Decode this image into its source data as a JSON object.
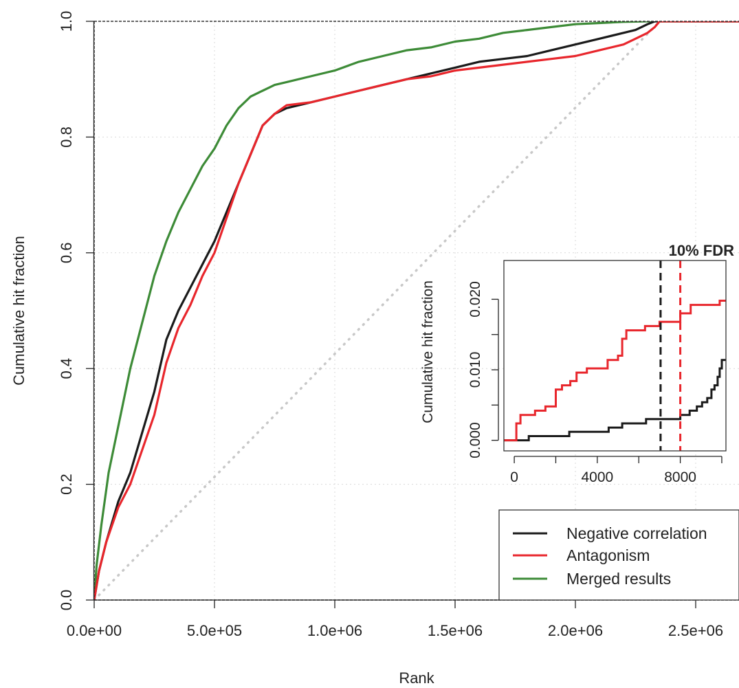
{
  "chart_data": [
    {
      "type": "line",
      "title": "",
      "xlabel": "Rank",
      "ylabel": "Cumulative hit fraction",
      "xlim": [
        0,
        2680000
      ],
      "ylim": [
        0,
        1
      ],
      "x_ticks": [
        0,
        500000,
        1000000,
        1500000,
        2000000,
        2500000
      ],
      "x_tick_labels": [
        "0.0e+00",
        "5.0e+05",
        "1.0e+06",
        "1.5e+06",
        "2.0e+06",
        "2.5e+06"
      ],
      "y_ticks": [
        0,
        0.2,
        0.4,
        0.6,
        0.8,
        1
      ],
      "y_tick_labels": [
        "0.0",
        "0.2",
        "0.4",
        "0.6",
        "0.8",
        "1.0"
      ],
      "grid": true,
      "legend_position": "bottom-right",
      "series": [
        {
          "name": "Negative correlation",
          "color": "#1a1a1a",
          "x": [
            0,
            20000,
            50000,
            100000,
            150000,
            200000,
            250000,
            300000,
            350000,
            400000,
            450000,
            500000,
            550000,
            600000,
            650000,
            700000,
            750000,
            800000,
            900000,
            1000000,
            1100000,
            1200000,
            1300000,
            1400000,
            1500000,
            1600000,
            1700000,
            1800000,
            1900000,
            2000000,
            2100000,
            2200000,
            2250000,
            2300000,
            2330000,
            2350000,
            2680000
          ],
          "y": [
            0,
            0.05,
            0.1,
            0.17,
            0.22,
            0.29,
            0.36,
            0.45,
            0.5,
            0.54,
            0.58,
            0.62,
            0.67,
            0.72,
            0.77,
            0.82,
            0.84,
            0.85,
            0.86,
            0.87,
            0.88,
            0.89,
            0.9,
            0.91,
            0.92,
            0.93,
            0.935,
            0.94,
            0.95,
            0.96,
            0.97,
            0.98,
            0.985,
            0.995,
            1.0,
            1.0,
            1.0
          ]
        },
        {
          "name": "Antagonism",
          "color": "#e8262c",
          "x": [
            0,
            20000,
            50000,
            100000,
            150000,
            200000,
            250000,
            300000,
            350000,
            400000,
            450000,
            500000,
            550000,
            600000,
            650000,
            700000,
            750000,
            800000,
            900000,
            1000000,
            1100000,
            1200000,
            1300000,
            1400000,
            1500000,
            1600000,
            1700000,
            1800000,
            1900000,
            2000000,
            2100000,
            2200000,
            2250000,
            2300000,
            2330000,
            2350000,
            2680000
          ],
          "y": [
            0,
            0.05,
            0.1,
            0.16,
            0.2,
            0.26,
            0.32,
            0.41,
            0.47,
            0.51,
            0.56,
            0.6,
            0.66,
            0.72,
            0.77,
            0.82,
            0.84,
            0.855,
            0.86,
            0.87,
            0.88,
            0.89,
            0.9,
            0.905,
            0.915,
            0.92,
            0.925,
            0.93,
            0.935,
            0.94,
            0.95,
            0.96,
            0.97,
            0.98,
            0.99,
            1.0,
            1.0
          ]
        },
        {
          "name": "Merged results",
          "color": "#3d8b37",
          "x": [
            0,
            10000,
            30000,
            60000,
            100000,
            150000,
            200000,
            250000,
            300000,
            350000,
            400000,
            450000,
            500000,
            550000,
            600000,
            650000,
            700000,
            750000,
            800000,
            900000,
            1000000,
            1100000,
            1200000,
            1300000,
            1400000,
            1500000,
            1600000,
            1700000,
            1800000,
            1900000,
            2000000,
            2100000,
            2200000,
            2300000,
            2350000,
            2680000
          ],
          "y": [
            0,
            0.06,
            0.13,
            0.22,
            0.3,
            0.4,
            0.48,
            0.56,
            0.62,
            0.67,
            0.71,
            0.75,
            0.78,
            0.82,
            0.85,
            0.87,
            0.88,
            0.89,
            0.895,
            0.905,
            0.915,
            0.93,
            0.94,
            0.95,
            0.955,
            0.965,
            0.97,
            0.98,
            0.985,
            0.99,
            0.995,
            0.997,
            0.999,
            1.0,
            1.0,
            1.0
          ]
        },
        {
          "name": "",
          "color": "#c8c8c8",
          "dash": "dotted",
          "x": [
            0,
            2680000
          ],
          "y": [
            0,
            1.14
          ]
        }
      ]
    },
    {
      "type": "line",
      "title": "",
      "xlabel": "",
      "ylabel": "Cumulative hit fraction",
      "xlim": [
        -500,
        10200
      ],
      "ylim": [
        -0.0015,
        0.0255
      ],
      "x_ticks": [
        0,
        4000,
        8000
      ],
      "x_tick_labels": [
        "0",
        "4000",
        "8000"
      ],
      "x_minor_ticks": [
        2000,
        6000,
        10000
      ],
      "y_ticks": [
        0,
        0.01,
        0.02
      ],
      "y_tick_labels": [
        "0.000",
        "0.010",
        "0.020"
      ],
      "y_minor_ticks": [
        0.005,
        0.015
      ],
      "annotation": "10% FDR",
      "vlines": [
        {
          "x": 7050,
          "color": "#1a1a1a",
          "dash": "dashed"
        },
        {
          "x": 8000,
          "color": "#e8262c",
          "dash": "dashed"
        }
      ],
      "series": [
        {
          "name": "Negative correlation",
          "color": "#1a1a1a",
          "step": true,
          "x": [
            -500,
            700,
            2650,
            4550,
            5200,
            6350,
            8000,
            8450,
            8800,
            9050,
            9300,
            9500,
            9650,
            9800,
            9900,
            10000,
            10200
          ],
          "y": [
            0,
            0.0006,
            0.0012,
            0.0018,
            0.0024,
            0.003,
            0.0036,
            0.0042,
            0.0048,
            0.0054,
            0.006,
            0.0072,
            0.0078,
            0.009,
            0.0102,
            0.0114,
            0.0114
          ]
        },
        {
          "name": "Antagonism",
          "color": "#e8262c",
          "step": true,
          "x": [
            -500,
            100,
            300,
            1000,
            1500,
            2000,
            2300,
            2700,
            3000,
            3500,
            4500,
            5000,
            5200,
            5400,
            6300,
            7000,
            8000,
            8500,
            9900,
            10200
          ],
          "y": [
            0,
            0.0024,
            0.0036,
            0.0042,
            0.0048,
            0.0072,
            0.0078,
            0.0084,
            0.0096,
            0.0102,
            0.0114,
            0.012,
            0.0144,
            0.0156,
            0.0162,
            0.0168,
            0.018,
            0.0192,
            0.0198,
            0.0198
          ]
        }
      ]
    }
  ]
}
